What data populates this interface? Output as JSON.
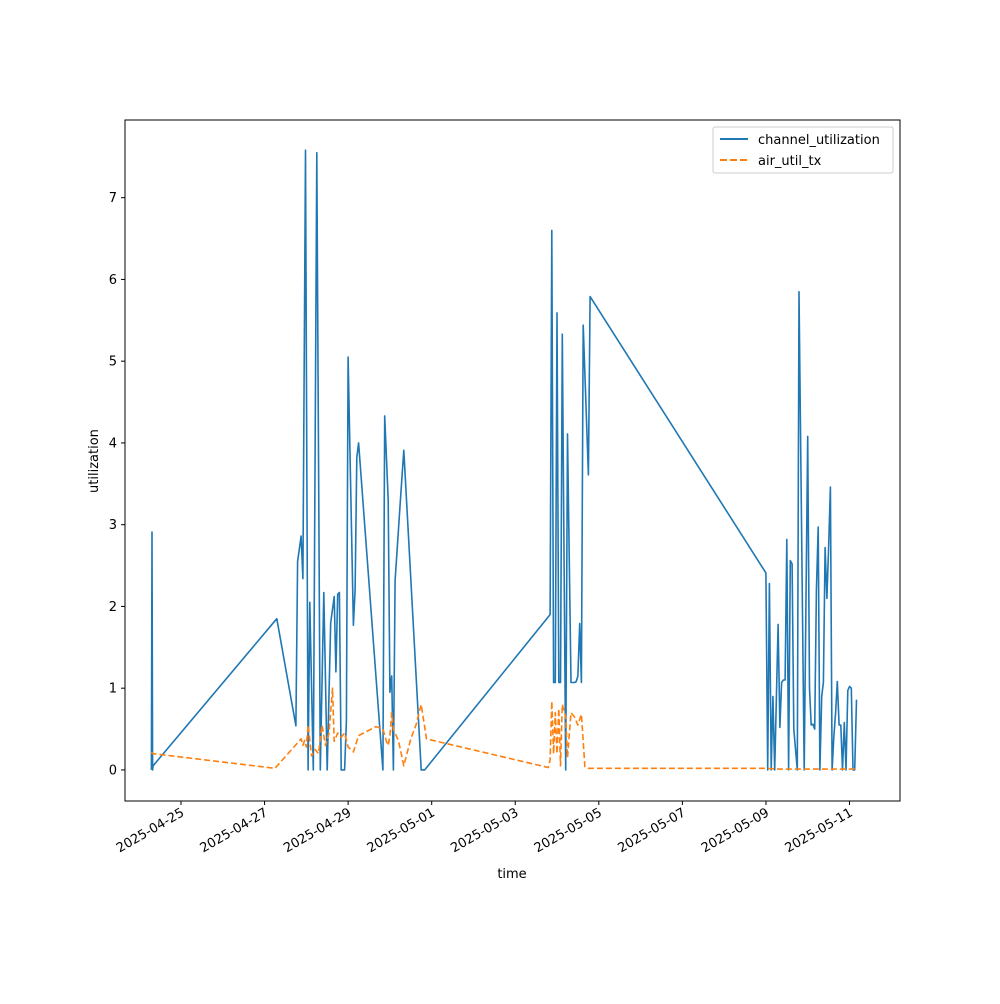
{
  "chart_data": {
    "type": "line",
    "title": "",
    "xlabel": "time",
    "ylabel": "utilization",
    "x_ticks": [
      "2025-04-25",
      "2025-04-27",
      "2025-04-29",
      "2025-05-01",
      "2025-05-03",
      "2025-05-05",
      "2025-05-07",
      "2025-05-09",
      "2025-05-11"
    ],
    "y_ticks": [
      "0",
      "1",
      "2",
      "3",
      "4",
      "5",
      "6",
      "7"
    ],
    "xlim": [
      "2025-04-23T15:50",
      "2025-05-12T05:00"
    ],
    "ylim": [
      -0.38,
      7.95
    ],
    "legend": {
      "position": "top-right"
    },
    "series": [
      {
        "name": "channel_utilization",
        "color": "#1f77b4",
        "style": "solid",
        "points": [
          [
            "2025-04-24T07:00",
            0.0
          ],
          [
            "2025-04-24T07:20",
            2.91
          ],
          [
            "2025-04-24T07:40",
            0.0
          ],
          [
            "2025-04-24T08:00",
            0.05
          ],
          [
            "2025-04-27T07:00",
            1.85
          ],
          [
            "2025-04-27T18:00",
            0.54
          ],
          [
            "2025-04-27T19:00",
            2.55
          ],
          [
            "2025-04-27T21:00",
            2.86
          ],
          [
            "2025-04-27T22:00",
            2.34
          ],
          [
            "2025-04-27T23:30",
            7.58
          ],
          [
            "2025-04-28T01:00",
            0.0
          ],
          [
            "2025-04-28T02:00",
            2.05
          ],
          [
            "2025-04-28T04:00",
            0.0
          ],
          [
            "2025-04-28T06:00",
            7.55
          ],
          [
            "2025-04-28T08:00",
            0.0
          ],
          [
            "2025-04-28T10:00",
            2.17
          ],
          [
            "2025-04-28T12:00",
            0.0
          ],
          [
            "2025-04-28T14:00",
            1.8
          ],
          [
            "2025-04-28T16:00",
            2.12
          ],
          [
            "2025-04-28T17:00",
            1.2
          ],
          [
            "2025-04-28T18:00",
            2.15
          ],
          [
            "2025-04-28T19:00",
            2.17
          ],
          [
            "2025-04-28T20:00",
            0.0
          ],
          [
            "2025-04-28T22:00",
            0.0
          ],
          [
            "2025-04-28T23:00",
            0.6
          ],
          [
            "2025-04-29T00:00",
            5.05
          ],
          [
            "2025-04-29T03:00",
            1.77
          ],
          [
            "2025-04-29T04:00",
            2.2
          ],
          [
            "2025-04-29T05:00",
            3.82
          ],
          [
            "2025-04-29T06:00",
            4.0
          ],
          [
            "2025-04-29T20:00",
            0.0
          ],
          [
            "2025-04-29T21:00",
            4.33
          ],
          [
            "2025-04-29T23:00",
            3.3
          ],
          [
            "2025-04-30T00:00",
            0.95
          ],
          [
            "2025-04-30T01:00",
            1.15
          ],
          [
            "2025-04-30T02:00",
            0.0
          ],
          [
            "2025-04-30T03:00",
            2.32
          ],
          [
            "2025-04-30T06:00",
            3.3
          ],
          [
            "2025-04-30T08:00",
            3.91
          ],
          [
            "2025-04-30T18:00",
            0.0
          ],
          [
            "2025-04-30T20:00",
            0.0
          ],
          [
            "2025-05-03T20:00",
            1.9
          ],
          [
            "2025-05-03T21:00",
            6.6
          ],
          [
            "2025-05-03T22:00",
            1.07
          ],
          [
            "2025-05-03T23:00",
            1.07
          ],
          [
            "2025-05-04T00:00",
            5.59
          ],
          [
            "2025-05-04T01:00",
            1.07
          ],
          [
            "2025-05-04T02:00",
            1.07
          ],
          [
            "2025-05-04T03:00",
            5.33
          ],
          [
            "2025-05-04T05:00",
            0.0
          ],
          [
            "2025-05-04T06:00",
            4.11
          ],
          [
            "2025-05-04T08:00",
            1.07
          ],
          [
            "2025-05-04T09:00",
            1.07
          ],
          [
            "2025-05-04T10:00",
            1.07
          ],
          [
            "2025-05-04T11:00",
            1.08
          ],
          [
            "2025-05-04T12:00",
            1.15
          ],
          [
            "2025-05-04T13:00",
            1.79
          ],
          [
            "2025-05-04T14:00",
            1.07
          ],
          [
            "2025-05-04T15:00",
            5.44
          ],
          [
            "2025-05-04T18:00",
            3.61
          ],
          [
            "2025-05-04T19:00",
            5.79
          ],
          [
            "2025-05-09T00:00",
            2.41
          ],
          [
            "2025-05-09T01:00",
            0.0
          ],
          [
            "2025-05-09T02:00",
            2.28
          ],
          [
            "2025-05-09T03:00",
            0.0
          ],
          [
            "2025-05-09T04:00",
            0.9
          ],
          [
            "2025-05-09T05:00",
            0.0
          ],
          [
            "2025-05-09T07:00",
            1.78
          ],
          [
            "2025-05-09T08:00",
            0.52
          ],
          [
            "2025-05-09T09:00",
            1.07
          ],
          [
            "2025-05-09T10:00",
            1.1
          ],
          [
            "2025-05-09T11:00",
            1.1
          ],
          [
            "2025-05-09T12:00",
            2.82
          ],
          [
            "2025-05-09T13:00",
            0.0
          ],
          [
            "2025-05-09T14:00",
            2.56
          ],
          [
            "2025-05-09T15:00",
            2.52
          ],
          [
            "2025-05-09T16:00",
            0.5
          ],
          [
            "2025-05-09T18:00",
            0.0
          ],
          [
            "2025-05-09T19:00",
            5.85
          ],
          [
            "2025-05-09T22:00",
            0.0
          ],
          [
            "2025-05-10T00:00",
            4.08
          ],
          [
            "2025-05-10T01:00",
            1.0
          ],
          [
            "2025-05-10T02:00",
            0.55
          ],
          [
            "2025-05-10T03:00",
            0.56
          ],
          [
            "2025-05-10T04:00",
            0.5
          ],
          [
            "2025-05-10T05:00",
            2.2
          ],
          [
            "2025-05-10T06:00",
            2.97
          ],
          [
            "2025-05-10T07:00",
            0.0
          ],
          [
            "2025-05-10T08:00",
            0.9
          ],
          [
            "2025-05-10T09:00",
            1.07
          ],
          [
            "2025-05-10T10:00",
            2.72
          ],
          [
            "2025-05-10T11:00",
            2.1
          ],
          [
            "2025-05-10T12:00",
            2.72
          ],
          [
            "2025-05-10T13:00",
            3.46
          ],
          [
            "2025-05-10T14:00",
            0.0
          ],
          [
            "2025-05-10T15:00",
            0.4
          ],
          [
            "2025-05-10T16:00",
            0.7
          ],
          [
            "2025-05-10T17:00",
            1.08
          ],
          [
            "2025-05-10T18:00",
            0.55
          ],
          [
            "2025-05-10T19:00",
            0.55
          ],
          [
            "2025-05-10T20:00",
            0.0
          ],
          [
            "2025-05-10T21:00",
            0.58
          ],
          [
            "2025-05-10T22:00",
            0.0
          ],
          [
            "2025-05-10T23:00",
            0.97
          ],
          [
            "2025-05-11T00:00",
            1.02
          ],
          [
            "2025-05-11T01:00",
            1.0
          ],
          [
            "2025-05-11T02:00",
            0.0
          ],
          [
            "2025-05-11T03:00",
            0.0
          ],
          [
            "2025-05-11T04:00",
            0.86
          ]
        ]
      },
      {
        "name": "air_util_tx",
        "color": "#ff7f0e",
        "style": "dashed",
        "points": [
          [
            "2025-04-24T07:00",
            0.22
          ],
          [
            "2025-04-24T07:40",
            0.2
          ],
          [
            "2025-04-27T06:00",
            0.02
          ],
          [
            "2025-04-27T21:00",
            0.38
          ],
          [
            "2025-04-27T22:00",
            0.3
          ],
          [
            "2025-04-27T23:00",
            0.36
          ],
          [
            "2025-04-28T00:00",
            0.28
          ],
          [
            "2025-04-28T01:00",
            0.55
          ],
          [
            "2025-04-28T03:00",
            0.17
          ],
          [
            "2025-04-28T05:00",
            0.25
          ],
          [
            "2025-04-28T07:00",
            0.2
          ],
          [
            "2025-04-28T09:00",
            0.55
          ],
          [
            "2025-04-28T11:00",
            0.3
          ],
          [
            "2025-04-28T13:00",
            0.45
          ],
          [
            "2025-04-28T15:00",
            1.0
          ],
          [
            "2025-04-28T16:00",
            0.35
          ],
          [
            "2025-04-28T18:00",
            0.45
          ],
          [
            "2025-04-28T20:00",
            0.4
          ],
          [
            "2025-04-28T22:00",
            0.45
          ],
          [
            "2025-04-29T00:00",
            0.28
          ],
          [
            "2025-04-29T03:00",
            0.22
          ],
          [
            "2025-04-29T06:00",
            0.42
          ],
          [
            "2025-04-29T16:00",
            0.53
          ],
          [
            "2025-04-29T20:00",
            0.5
          ],
          [
            "2025-04-29T22:00",
            0.35
          ],
          [
            "2025-04-29T23:00",
            0.3
          ],
          [
            "2025-04-30T00:00",
            0.42
          ],
          [
            "2025-04-30T01:00",
            0.7
          ],
          [
            "2025-04-30T02:00",
            0.5
          ],
          [
            "2025-04-30T05:00",
            0.35
          ],
          [
            "2025-04-30T08:00",
            0.05
          ],
          [
            "2025-04-30T12:00",
            0.38
          ],
          [
            "2025-04-30T15:00",
            0.55
          ],
          [
            "2025-04-30T18:00",
            0.8
          ],
          [
            "2025-04-30T21:00",
            0.38
          ],
          [
            "2025-05-03T19:00",
            0.03
          ],
          [
            "2025-05-03T20:00",
            0.12
          ],
          [
            "2025-05-03T21:00",
            0.84
          ],
          [
            "2025-05-03T22:00",
            0.2
          ],
          [
            "2025-05-03T23:00",
            0.7
          ],
          [
            "2025-05-04T00:00",
            0.2
          ],
          [
            "2025-05-04T01:00",
            0.75
          ],
          [
            "2025-05-04T02:00",
            0.05
          ],
          [
            "2025-05-04T03:00",
            0.8
          ],
          [
            "2025-05-04T05:00",
            0.65
          ],
          [
            "2025-05-04T06:00",
            0.15
          ],
          [
            "2025-05-04T08:00",
            0.7
          ],
          [
            "2025-05-04T10:00",
            0.65
          ],
          [
            "2025-05-04T12:00",
            0.55
          ],
          [
            "2025-05-04T14:00",
            0.68
          ],
          [
            "2025-05-04T16:00",
            0.04
          ],
          [
            "2025-05-04T18:00",
            0.02
          ],
          [
            "2025-05-09T00:00",
            0.02
          ],
          [
            "2025-05-09T06:00",
            0.01
          ],
          [
            "2025-05-10T00:00",
            0.01
          ],
          [
            "2025-05-11T04:00",
            0.01
          ]
        ]
      }
    ]
  }
}
